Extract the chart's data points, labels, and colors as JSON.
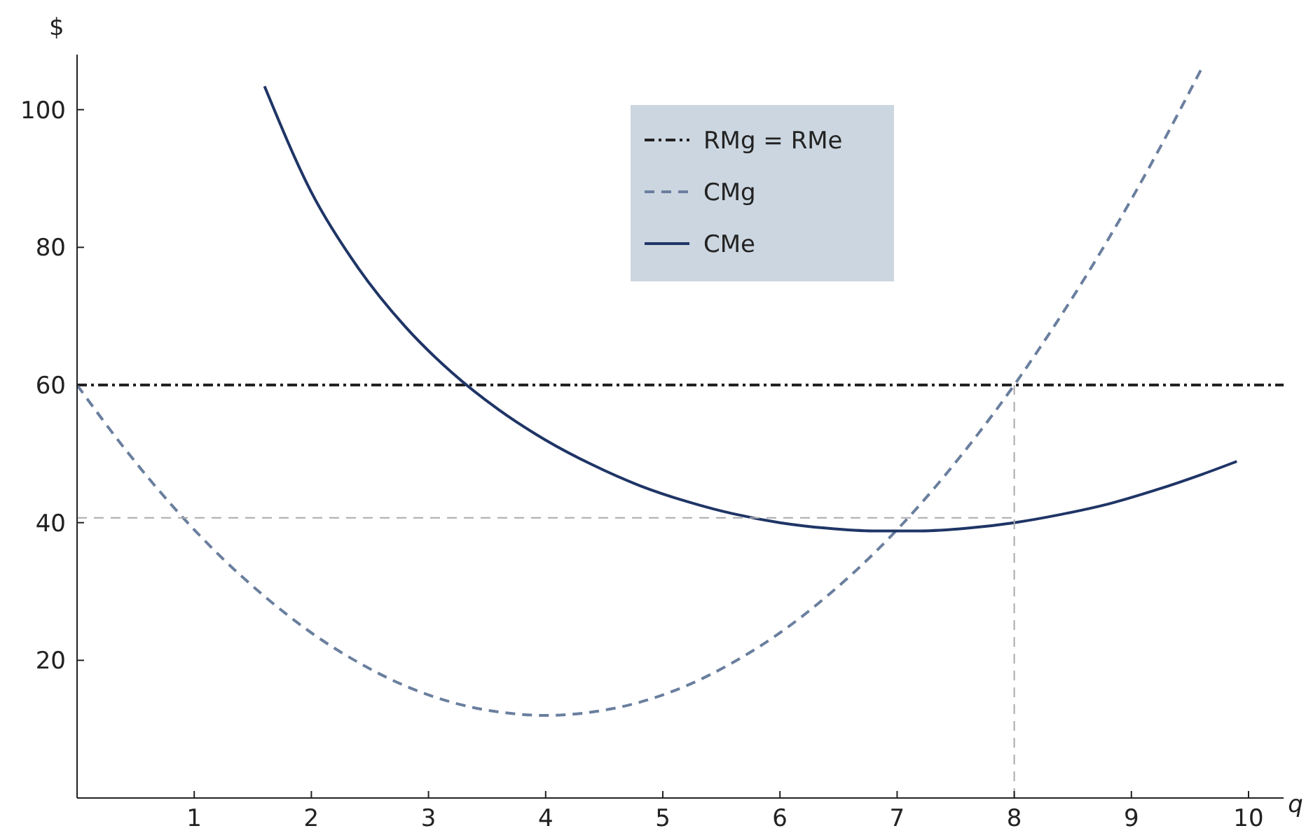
{
  "chart_data": {
    "type": "line",
    "xlabel": "q",
    "ylabel": "$",
    "xlim": [
      0,
      10.3
    ],
    "ylim": [
      0,
      108
    ],
    "xticks": [
      1,
      2,
      3,
      4,
      5,
      6,
      7,
      8,
      9,
      10
    ],
    "yticks": [
      20,
      40,
      60,
      80,
      100
    ],
    "grid": false,
    "legend": "top",
    "series": [
      {
        "name": "RMg = RMe",
        "color": "#222222",
        "line_style": "dashdot",
        "x": [
          0,
          10.3
        ],
        "values": [
          60,
          60
        ]
      },
      {
        "name": "CMg",
        "color": "#6a7f9e",
        "line_style": "dashed",
        "x": [
          0,
          0.4,
          0.8,
          1.2,
          1.6,
          2,
          2.4,
          2.8,
          3.2,
          3.6,
          4,
          4.4,
          4.8,
          5.2,
          5.6,
          6,
          6.4,
          6.8,
          7.2,
          7.6,
          8,
          8.4,
          8.8,
          9.2,
          9.6
        ],
        "values": [
          60,
          50.9,
          42.7,
          35.5,
          29.3,
          24,
          19.7,
          16.3,
          13.9,
          12.5,
          12,
          12.5,
          13.9,
          16.3,
          19.7,
          24,
          29.3,
          35.5,
          42.7,
          50.9,
          60,
          70.1,
          81.1,
          93.1,
          106
        ]
      },
      {
        "name": "CMe",
        "color": "#1f3566",
        "line_style": "solid",
        "x": [
          1.6,
          2,
          2.4,
          2.8,
          3.2,
          3.6,
          4,
          4.4,
          4.8,
          5.2,
          5.6,
          6,
          6.4,
          6.8,
          7.2,
          7.6,
          8,
          8.4,
          8.8,
          9.2,
          9.6,
          9.9
        ],
        "values": [
          103.4,
          88,
          77,
          68.5,
          61.8,
          56.4,
          52,
          48.4,
          45.4,
          43.1,
          41.3,
          40,
          39.2,
          38.8,
          38.8,
          39.2,
          40,
          41.2,
          42.7,
          44.7,
          47,
          48.9
        ]
      },
      {
        "color": "#aaaaaa",
        "line_style": "dashed",
        "x": [
          0,
          8
        ],
        "values": [
          40.7,
          40.7
        ]
      },
      {
        "color": "#aaaaaa",
        "line_style": "dashed",
        "x": [
          8,
          8
        ],
        "values": [
          0,
          60
        ]
      }
    ]
  }
}
